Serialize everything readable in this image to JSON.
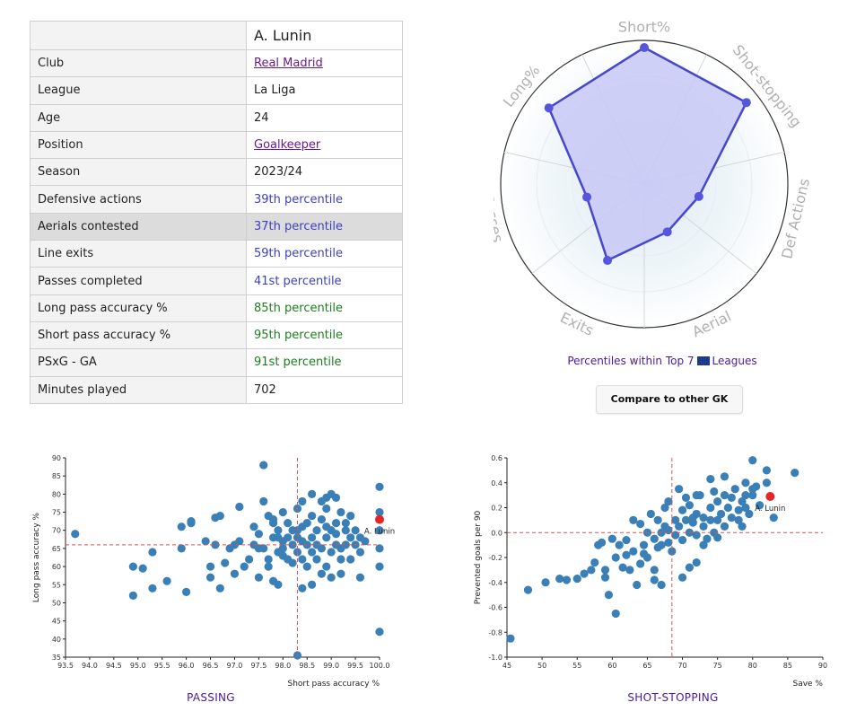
{
  "player": {
    "name": "A. Lunin"
  },
  "stats": [
    {
      "label": "Club",
      "value": "Real Madrid",
      "style": "link"
    },
    {
      "label": "League",
      "value": "La Liga",
      "style": "plain"
    },
    {
      "label": "Age",
      "value": "24",
      "style": "plain"
    },
    {
      "label": "Position",
      "value": "Goalkeeper",
      "style": "link"
    },
    {
      "label": "Season",
      "value": "2023/24",
      "style": "plain"
    },
    {
      "label": "Defensive actions",
      "value": "39th percentile",
      "style": "blue"
    },
    {
      "label": "Aerials contested",
      "value": "37th percentile",
      "style": "blue"
    },
    {
      "label": "Line exits",
      "value": "59th percentile",
      "style": "blue"
    },
    {
      "label": "Passes completed",
      "value": "41st percentile",
      "style": "blue"
    },
    {
      "label": "Long pass accuracy %",
      "value": "85th percentile",
      "style": "green"
    },
    {
      "label": "Short pass accuracy %",
      "value": "95th percentile",
      "style": "green"
    },
    {
      "label": "PSxG - GA",
      "value": "91st percentile",
      "style": "green"
    },
    {
      "label": "Minutes played",
      "value": "702",
      "style": "plain"
    }
  ],
  "radar": {
    "caption_before": "Percentiles within Top 7",
    "caption_after": "Leagues",
    "compare_button": "Compare to other GK",
    "colors": {
      "fill": "#c8c8f6",
      "stroke": "#4747cc",
      "point": "#5555dd"
    }
  },
  "chart_data": [
    {
      "type": "radar",
      "axes": [
        "Short%",
        "Shot-stopping",
        "Def Actions",
        "Aerial",
        "Exits",
        "Passes",
        "Long%"
      ],
      "values": [
        95,
        91,
        39,
        37,
        59,
        41,
        85
      ],
      "range": [
        0,
        100
      ]
    },
    {
      "type": "scatter",
      "title": "PASSING",
      "xlabel": "Short pass accuracy %",
      "ylabel": "Long pass accuracy %",
      "xlim": [
        93.5,
        100.0
      ],
      "ylim": [
        35,
        90
      ],
      "xticks": [
        "93.5",
        "94.0",
        "94.5",
        "95.0",
        "95.5",
        "96.0",
        "96.5",
        "97.0",
        "97.5",
        "98.0",
        "98.5",
        "99.0",
        "99.5",
        "100.0"
      ],
      "yticks": [
        "35",
        "40",
        "45",
        "50",
        "55",
        "60",
        "65",
        "70",
        "75",
        "80",
        "85",
        "90"
      ],
      "refline_x": 98.3,
      "refline_y": 66,
      "highlight": {
        "label": "A. Lunin",
        "x": 100.0,
        "y": 73
      },
      "colors": {
        "point": "#3a7fb6",
        "highlight": "#e32626",
        "refline": "#d9534f"
      },
      "points": [
        [
          93.7,
          69
        ],
        [
          94.9,
          60
        ],
        [
          94.9,
          52
        ],
        [
          95.1,
          59.5
        ],
        [
          95.3,
          54
        ],
        [
          95.3,
          64
        ],
        [
          95.6,
          56
        ],
        [
          95.9,
          65
        ],
        [
          95.9,
          71
        ],
        [
          96.0,
          53
        ],
        [
          96.1,
          72
        ],
        [
          96.1,
          72.5
        ],
        [
          96.4,
          67
        ],
        [
          96.5,
          60
        ],
        [
          96.5,
          57
        ],
        [
          96.6,
          66
        ],
        [
          96.6,
          73.5
        ],
        [
          96.7,
          54
        ],
        [
          96.7,
          74
        ],
        [
          96.8,
          61
        ],
        [
          96.9,
          65
        ],
        [
          97.0,
          66
        ],
        [
          97.0,
          58
        ],
        [
          97.1,
          67
        ],
        [
          97.1,
          76.5
        ],
        [
          97.2,
          60
        ],
        [
          97.3,
          62
        ],
        [
          97.4,
          71
        ],
        [
          97.4,
          66
        ],
        [
          97.5,
          69
        ],
        [
          97.5,
          65
        ],
        [
          97.5,
          57
        ],
        [
          97.6,
          78
        ],
        [
          97.6,
          88
        ],
        [
          97.6,
          65
        ],
        [
          97.7,
          74
        ],
        [
          97.7,
          60
        ],
        [
          97.7,
          62
        ],
        [
          97.8,
          73
        ],
        [
          97.8,
          68
        ],
        [
          97.8,
          72
        ],
        [
          97.8,
          56
        ],
        [
          97.9,
          64
        ],
        [
          97.9,
          70
        ],
        [
          97.9,
          55
        ],
        [
          97.9,
          68
        ],
        [
          98.0,
          63
        ],
        [
          98.0,
          65
        ],
        [
          98.0,
          75
        ],
        [
          98.1,
          72
        ],
        [
          98.1,
          62
        ],
        [
          98.1,
          68
        ],
        [
          98.2,
          70
        ],
        [
          98.2,
          61
        ],
        [
          98.2,
          66
        ],
        [
          98.3,
          64
        ],
        [
          98.3,
          68
        ],
        [
          98.3,
          76
        ],
        [
          98.3,
          70
        ],
        [
          98.4,
          71
        ],
        [
          98.4,
          67
        ],
        [
          98.4,
          62
        ],
        [
          98.4,
          54
        ],
        [
          98.5,
          60
        ],
        [
          98.5,
          66
        ],
        [
          98.5,
          72
        ],
        [
          98.6,
          74
        ],
        [
          98.6,
          64
        ],
        [
          98.6,
          68
        ],
        [
          98.6,
          55
        ],
        [
          98.7,
          70
        ],
        [
          98.7,
          66
        ],
        [
          98.7,
          62
        ],
        [
          98.8,
          78
        ],
        [
          98.8,
          58
        ],
        [
          98.8,
          73
        ],
        [
          98.8,
          65
        ],
        [
          98.9,
          71
        ],
        [
          98.9,
          76
        ],
        [
          98.9,
          68
        ],
        [
          98.9,
          60
        ],
        [
          99.0,
          70
        ],
        [
          99.0,
          64
        ],
        [
          99.0,
          80
        ],
        [
          99.0,
          57
        ],
        [
          99.1,
          72
        ],
        [
          99.1,
          66
        ],
        [
          99.1,
          69
        ],
        [
          99.2,
          75
        ],
        [
          99.2,
          62
        ],
        [
          99.2,
          65
        ],
        [
          99.3,
          72
        ],
        [
          99.3,
          66
        ],
        [
          99.3,
          70
        ],
        [
          99.4,
          68
        ],
        [
          99.4,
          62
        ],
        [
          99.4,
          74
        ],
        [
          99.5,
          66
        ],
        [
          99.5,
          70
        ],
        [
          99.6,
          64
        ],
        [
          99.6,
          68
        ],
        [
          99.6,
          57
        ],
        [
          99.7,
          67
        ],
        [
          100.0,
          82
        ],
        [
          100.0,
          75
        ],
        [
          100.0,
          70
        ],
        [
          100.0,
          65
        ],
        [
          100.0,
          60
        ],
        [
          100.0,
          42
        ],
        [
          98.3,
          35.5
        ],
        [
          98.4,
          78
        ],
        [
          98.9,
          79
        ],
        [
          99.1,
          79
        ],
        [
          98.6,
          80
        ],
        [
          99.2,
          58
        ],
        [
          98.0,
          67
        ]
      ]
    },
    {
      "type": "scatter",
      "title": "SHOT-STOPPING",
      "xlabel": "Save %",
      "ylabel": "Prevented goals per 90",
      "xlim": [
        45,
        90
      ],
      "ylim": [
        -1.0,
        0.6
      ],
      "xticks": [
        "45",
        "50",
        "55",
        "60",
        "65",
        "70",
        "75",
        "80",
        "85",
        "90"
      ],
      "yticks": [
        "-1.0",
        "-0.8",
        "-0.6",
        "-0.4",
        "-0.2",
        "0.0",
        "0.2",
        "0.4",
        "0.6"
      ],
      "refline_x": 68.5,
      "refline_y": 0.0,
      "highlight": {
        "label": "A. Lunin",
        "x": 82.5,
        "y": 0.29
      },
      "colors": {
        "point": "#3a7fb6",
        "highlight": "#e32626",
        "refline": "#d9534f"
      },
      "points": [
        [
          45.5,
          -0.85
        ],
        [
          48,
          -0.46
        ],
        [
          50.5,
          -0.4
        ],
        [
          52.5,
          -0.37
        ],
        [
          53.5,
          -0.38
        ],
        [
          55,
          -0.37
        ],
        [
          56,
          -0.33
        ],
        [
          57,
          -0.3
        ],
        [
          57.5,
          -0.24
        ],
        [
          58,
          -0.1
        ],
        [
          58.5,
          -0.08
        ],
        [
          59,
          -0.36
        ],
        [
          59,
          -0.3
        ],
        [
          59.5,
          -0.5
        ],
        [
          60,
          -0.05
        ],
        [
          60.5,
          -0.65
        ],
        [
          60.5,
          -0.2
        ],
        [
          61,
          -0.1
        ],
        [
          61.5,
          -0.28
        ],
        [
          62,
          -0.06
        ],
        [
          62,
          -0.18
        ],
        [
          62.5,
          -0.3
        ],
        [
          63,
          -0.15
        ],
        [
          63,
          0.1
        ],
        [
          63.5,
          -0.42
        ],
        [
          64,
          -0.25
        ],
        [
          64,
          0.07
        ],
        [
          64.5,
          -0.1
        ],
        [
          65,
          0.0
        ],
        [
          65,
          -0.2
        ],
        [
          65.5,
          0.15
        ],
        [
          66,
          -0.05
        ],
        [
          66,
          -0.3
        ],
        [
          66.5,
          0.1
        ],
        [
          67,
          0.0
        ],
        [
          67,
          -0.1
        ],
        [
          67.5,
          0.2
        ],
        [
          68,
          0.02
        ],
        [
          68,
          -0.08
        ],
        [
          68.5,
          -0.15
        ],
        [
          69,
          0.1
        ],
        [
          69,
          -0.02
        ],
        [
          69.5,
          0.05
        ],
        [
          70,
          0.18
        ],
        [
          70,
          -0.06
        ],
        [
          70.5,
          0.1
        ],
        [
          71,
          0.0
        ],
        [
          71,
          0.22
        ],
        [
          71.5,
          0.08
        ],
        [
          72,
          0.15
        ],
        [
          72,
          -0.02
        ],
        [
          72.5,
          0.3
        ],
        [
          73,
          0.05
        ],
        [
          73,
          0.12
        ],
        [
          73.5,
          -0.05
        ],
        [
          74,
          0.2
        ],
        [
          74,
          0.1
        ],
        [
          74.5,
          0.0
        ],
        [
          75,
          0.25
        ],
        [
          75,
          0.1
        ],
        [
          75.5,
          0.15
        ],
        [
          76,
          0.05
        ],
        [
          76,
          0.3
        ],
        [
          76.5,
          0.2
        ],
        [
          77,
          0.12
        ],
        [
          77.5,
          0.35
        ],
        [
          78,
          0.18
        ],
        [
          78,
          0.1
        ],
        [
          78.5,
          0.25
        ],
        [
          79,
          0.4
        ],
        [
          79.5,
          0.15
        ],
        [
          80,
          0.58
        ],
        [
          80,
          0.3
        ],
        [
          80.5,
          0.37
        ],
        [
          81,
          0.22
        ],
        [
          82,
          0.5
        ],
        [
          82,
          0.4
        ],
        [
          83,
          0.12
        ],
        [
          86,
          0.48
        ],
        [
          71,
          -0.28
        ],
        [
          72,
          -0.24
        ],
        [
          70,
          -0.36
        ],
        [
          67,
          -0.42
        ],
        [
          66,
          -0.38
        ],
        [
          74,
          0.43
        ],
        [
          72,
          0.3
        ],
        [
          77,
          0.28
        ],
        [
          79,
          0.2
        ],
        [
          76,
          0.45
        ],
        [
          68,
          0.25
        ],
        [
          75,
          -0.04
        ],
        [
          73,
          -0.1
        ],
        [
          66.5,
          -0.12
        ],
        [
          64.5,
          -0.17
        ],
        [
          67.5,
          0.05
        ],
        [
          69.5,
          0.35
        ],
        [
          70.5,
          0.28
        ],
        [
          71.5,
          0.12
        ],
        [
          74.5,
          0.33
        ],
        [
          78.5,
          0.05
        ],
        [
          79,
          0.3
        ],
        [
          80,
          0.35
        ]
      ]
    }
  ]
}
